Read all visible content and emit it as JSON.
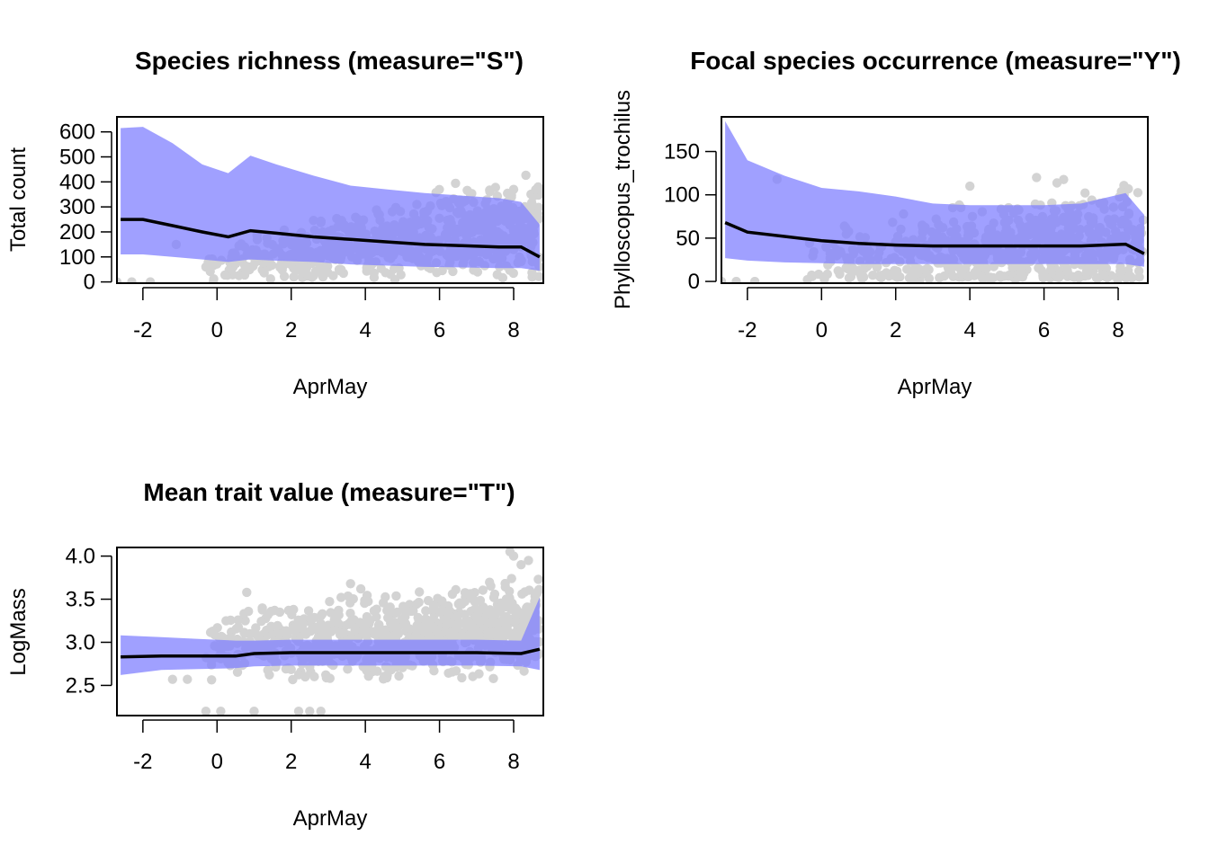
{
  "chart_data": [
    {
      "type": "scatter",
      "title": "Species richness (measure=\"S\")",
      "xlabel": "AprMay",
      "ylabel": "Total count",
      "xlim": [
        -2.7,
        8.8
      ],
      "ylim": [
        -5,
        660
      ],
      "xticks": [
        -2,
        0,
        2,
        4,
        6,
        8
      ],
      "xtick_labels": [
        "-2",
        "0",
        "2",
        "4",
        "6",
        "8"
      ],
      "yticks": [
        0,
        100,
        200,
        300,
        400,
        500,
        600
      ],
      "ytick_labels": [
        "0",
        "100",
        "200",
        "300",
        "400",
        "500",
        "600"
      ],
      "band_color": "#8080ff",
      "line_color": "#000000",
      "point_color": "#d3d3d3",
      "series": [
        {
          "name": "prediction",
          "x": [
            -2.6,
            -2.0,
            -1.2,
            -0.4,
            0.3,
            0.9,
            1.6,
            2.6,
            3.6,
            4.6,
            5.6,
            6.6,
            7.6,
            8.2,
            8.7
          ],
          "values": [
            250,
            250,
            225,
            200,
            180,
            205,
            195,
            180,
            170,
            160,
            150,
            145,
            140,
            140,
            100
          ]
        },
        {
          "name": "upper",
          "x": [
            -2.6,
            -2.0,
            -1.2,
            -0.4,
            0.3,
            0.9,
            1.6,
            2.6,
            3.6,
            4.6,
            5.6,
            6.6,
            7.6,
            8.2,
            8.7
          ],
          "values": [
            615,
            620,
            555,
            470,
            435,
            505,
            470,
            425,
            385,
            370,
            355,
            345,
            335,
            320,
            230
          ]
        },
        {
          "name": "lower",
          "x": [
            -2.6,
            -2.0,
            -1.2,
            -0.4,
            0.3,
            0.9,
            1.6,
            2.6,
            3.6,
            4.6,
            5.6,
            6.6,
            7.6,
            8.2,
            8.7
          ],
          "values": [
            110,
            110,
            100,
            90,
            80,
            90,
            85,
            80,
            70,
            65,
            60,
            58,
            55,
            55,
            45
          ]
        }
      ],
      "points": {
        "n": 700,
        "y_center": [
          20,
          235
        ],
        "y_spread": [
          40,
          210
        ],
        "extra": [
          [
            -2.7,
            0
          ],
          [
            -2.3,
            0
          ],
          [
            -1.8,
            0
          ],
          [
            -1.1,
            150
          ],
          [
            -0.3,
            60
          ],
          [
            -0.1,
            0
          ],
          [
            8.0,
            370
          ]
        ]
      }
    },
    {
      "type": "scatter",
      "title": "Focal species occurrence (measure=\"Y\")",
      "xlabel": "AprMay",
      "ylabel": "Phylloscopus_trochilus",
      "xlim": [
        -2.7,
        8.8
      ],
      "ylim": [
        -2,
        190
      ],
      "xticks": [
        -2,
        0,
        2,
        4,
        6,
        8
      ],
      "xtick_labels": [
        "-2",
        "0",
        "2",
        "4",
        "6",
        "8"
      ],
      "yticks": [
        0,
        50,
        100,
        150
      ],
      "ytick_labels": [
        "0",
        "50",
        "100",
        "150"
      ],
      "band_color": "#8080ff",
      "line_color": "#000000",
      "point_color": "#d3d3d3",
      "series": [
        {
          "name": "prediction",
          "x": [
            -2.6,
            -2.0,
            -1.0,
            0.0,
            1.0,
            2.0,
            3.0,
            4.0,
            5.0,
            6.0,
            7.0,
            8.2,
            8.7
          ],
          "values": [
            68,
            57,
            52,
            47,
            44,
            42,
            41,
            41,
            41,
            41,
            41,
            43,
            32
          ]
        },
        {
          "name": "upper",
          "x": [
            -2.6,
            -2.0,
            -1.0,
            0.0,
            1.0,
            2.0,
            3.0,
            4.0,
            5.0,
            6.0,
            7.0,
            8.2,
            8.7
          ],
          "values": [
            185,
            140,
            122,
            108,
            104,
            98,
            90,
            88,
            88,
            88,
            90,
            102,
            77
          ]
        },
        {
          "name": "lower",
          "x": [
            -2.6,
            -2.0,
            -1.0,
            0.0,
            1.0,
            2.0,
            3.0,
            4.0,
            5.0,
            6.0,
            7.0,
            8.2,
            8.7
          ],
          "values": [
            27,
            24,
            22,
            21,
            20,
            20,
            20,
            20,
            20,
            20,
            20,
            20,
            17
          ]
        }
      ],
      "points": {
        "n": 650,
        "y_center": [
          15,
          45
        ],
        "y_spread": [
          30,
          70
        ],
        "extra": [
          [
            -2.7,
            0
          ],
          [
            -2.3,
            0
          ],
          [
            -1.8,
            0
          ],
          [
            -1.2,
            118
          ],
          [
            5.8,
            120
          ],
          [
            4.0,
            110
          ]
        ]
      }
    },
    {
      "type": "scatter",
      "title": "Mean trait value (measure=\"T\")",
      "xlabel": "AprMay",
      "ylabel": "LogMass",
      "xlim": [
        -2.7,
        8.8
      ],
      "ylim": [
        2.15,
        4.1
      ],
      "xticks": [
        -2,
        0,
        2,
        4,
        6,
        8
      ],
      "xtick_labels": [
        "-2",
        "0",
        "2",
        "4",
        "6",
        "8"
      ],
      "yticks": [
        2.5,
        3.0,
        3.5,
        4.0
      ],
      "ytick_labels": [
        "2.5",
        "3.0",
        "3.5",
        "4.0"
      ],
      "band_color": "#8080ff",
      "line_color": "#000000",
      "point_color": "#d3d3d3",
      "series": [
        {
          "name": "prediction",
          "x": [
            -2.6,
            -1.5,
            -0.5,
            0.5,
            1.0,
            2.0,
            3.0,
            4.0,
            5.0,
            6.0,
            7.0,
            8.2,
            8.7
          ],
          "values": [
            2.83,
            2.84,
            2.84,
            2.84,
            2.87,
            2.88,
            2.88,
            2.88,
            2.88,
            2.88,
            2.88,
            2.87,
            2.92
          ]
        },
        {
          "name": "upper",
          "x": [
            -2.6,
            -1.5,
            -0.5,
            0.5,
            1.0,
            2.0,
            3.0,
            4.0,
            5.0,
            6.0,
            7.0,
            8.2,
            8.7
          ],
          "values": [
            3.08,
            3.06,
            3.04,
            3.02,
            3.02,
            3.03,
            3.03,
            3.03,
            3.03,
            3.03,
            3.03,
            3.02,
            3.52
          ]
        },
        {
          "name": "lower",
          "x": [
            -2.6,
            -1.5,
            -0.5,
            0.5,
            1.0,
            2.0,
            3.0,
            4.0,
            5.0,
            6.0,
            7.0,
            8.2,
            8.7
          ],
          "values": [
            2.62,
            2.68,
            2.69,
            2.7,
            2.72,
            2.73,
            2.73,
            2.73,
            2.73,
            2.73,
            2.73,
            2.72,
            2.68
          ]
        }
      ],
      "points": {
        "n": 900,
        "y_center": [
          2.85,
          3.2
        ],
        "y_spread": [
          0.35,
          0.55
        ],
        "extra": [
          [
            -0.3,
            2.2
          ],
          [
            0.1,
            2.2
          ],
          [
            1.0,
            2.2
          ],
          [
            2.2,
            2.2
          ],
          [
            2.5,
            2.2
          ],
          [
            2.8,
            2.2
          ],
          [
            -1.2,
            2.57
          ],
          [
            -0.8,
            2.57
          ],
          [
            0.8,
            3.58
          ],
          [
            3.6,
            3.68
          ],
          [
            7.9,
            4.05
          ],
          [
            8.0,
            4.0
          ],
          [
            8.2,
            3.9
          ],
          [
            8.4,
            3.95
          ]
        ]
      }
    }
  ]
}
